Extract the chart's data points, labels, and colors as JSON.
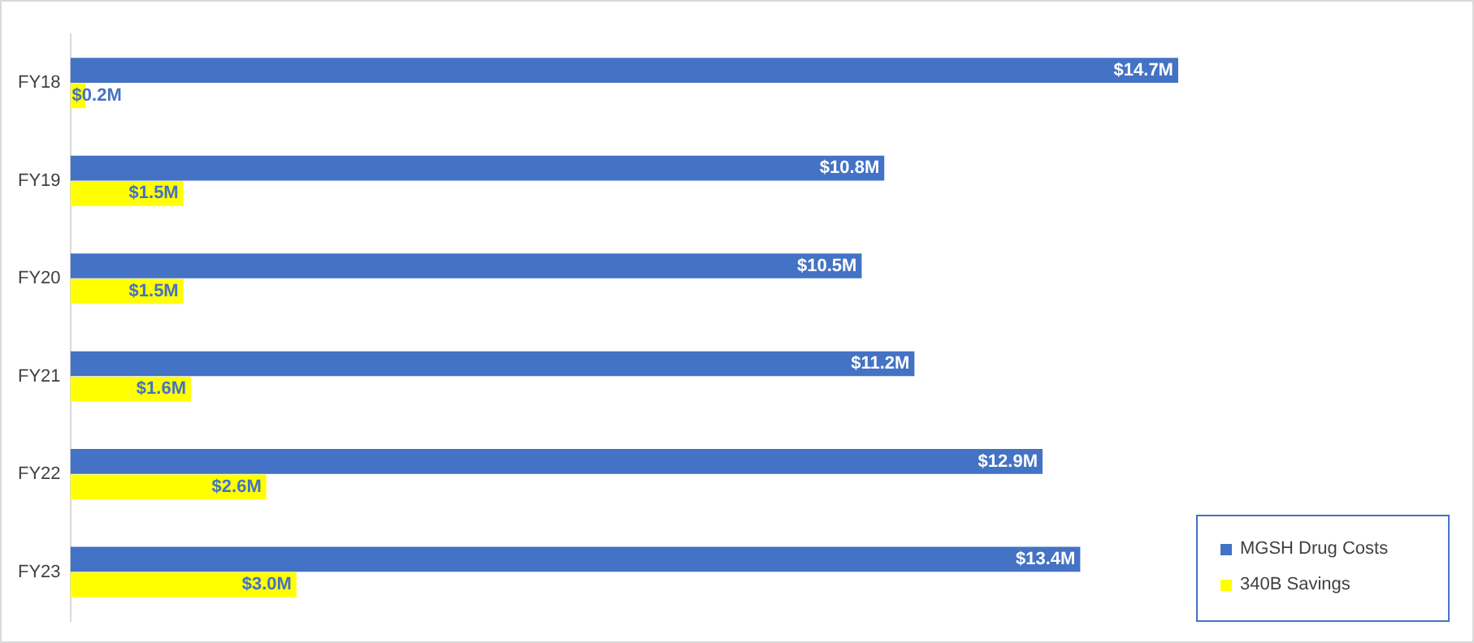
{
  "chart_data": {
    "type": "bar",
    "orientation": "horizontal",
    "categories": [
      "FY18",
      "FY19",
      "FY20",
      "FY21",
      "FY22",
      "FY23"
    ],
    "series": [
      {
        "name": "MGSH Drug Costs",
        "color": "#4472c4",
        "values": [
          14.7,
          10.8,
          10.5,
          11.2,
          12.9,
          13.4
        ],
        "value_labels": [
          "$14.7M",
          "$10.8M",
          "$10.5M",
          "$11.2M",
          "$12.9M",
          "$13.4M"
        ]
      },
      {
        "name": "340B Savings",
        "color": "#ffff00",
        "values": [
          0.2,
          1.5,
          1.5,
          1.6,
          2.6,
          3.0
        ],
        "value_labels": [
          "$0.2M",
          "$1.5M",
          "$1.5M",
          "$1.6M",
          "$2.6M",
          "$3.0M"
        ]
      }
    ],
    "legend": "bottom right",
    "grid": false
  }
}
